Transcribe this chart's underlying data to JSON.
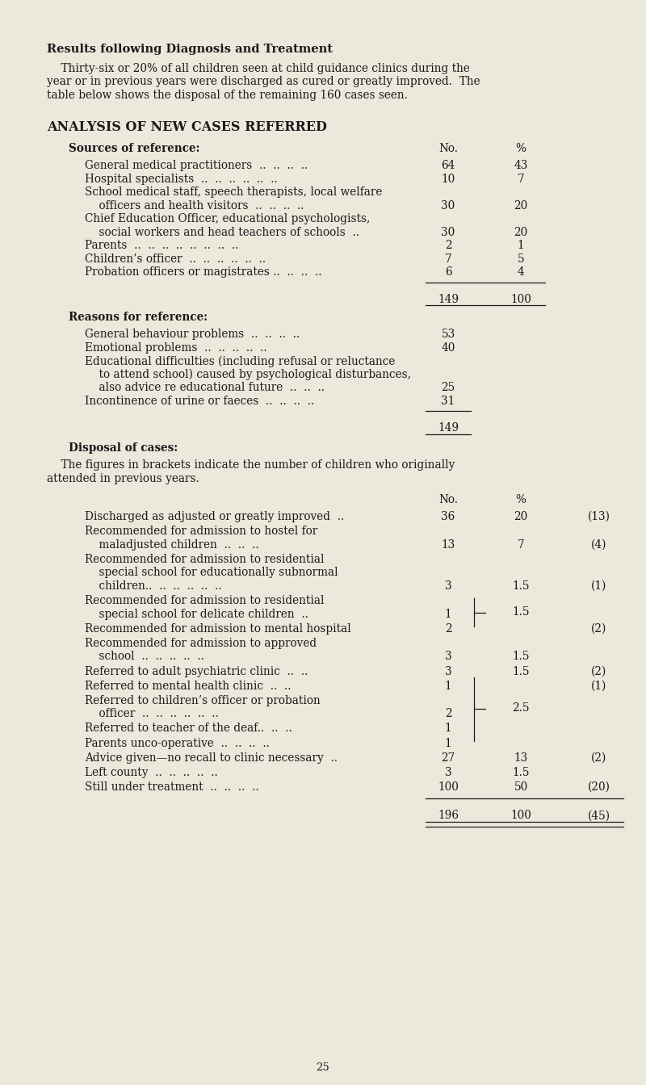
{
  "bg_color": "#ede8dc",
  "text_color": "#1a1a1a",
  "page_number": "25",
  "title_bold": "Results following Diagnosis and Treatment",
  "intro_line1": "    Thirty-six or 20% of all children seen at child guidance clinics during the",
  "intro_line2": "year or in previous years were discharged as cured or greatly improved.  The",
  "intro_line3": "table below shows the disposal of the remaining 160 cases seen.",
  "section_title": "ANALYSIS OF NEW CASES REFERRED",
  "sources_header": "Sources of reference:",
  "sources_col_no": "No.",
  "sources_col_pct": "%",
  "sources": [
    {
      "lines": [
        "General medical practitioners  ..  ..  ..  .."
      ],
      "no": "64",
      "pct": "43"
    },
    {
      "lines": [
        "Hospital specialists  ..  ..  ..  ..  ..  .."
      ],
      "no": "10",
      "pct": "7"
    },
    {
      "lines": [
        "School medical staff, speech therapists, local welfare",
        "    officers and health visitors  ..  ..  ..  .."
      ],
      "no": "30",
      "pct": "20"
    },
    {
      "lines": [
        "Chief Education Officer, educational psychologists,",
        "    social workers and head teachers of schools  .."
      ],
      "no": "30",
      "pct": "20"
    },
    {
      "lines": [
        "Parents  ..  ..  ..  ..  ..  ..  ..  .."
      ],
      "no": "2",
      "pct": "1"
    },
    {
      "lines": [
        "Children’s officer  ..  ..  ..  ..  ..  .."
      ],
      "no": "7",
      "pct": "5"
    },
    {
      "lines": [
        "Probation officers or magistrates ..  ..  ..  .."
      ],
      "no": "6",
      "pct": "4"
    }
  ],
  "sources_total_no": "149",
  "sources_total_pct": "100",
  "reasons_header": "Reasons for reference:",
  "reasons": [
    {
      "lines": [
        "General behaviour problems  ..  ..  ..  .."
      ],
      "no": "53"
    },
    {
      "lines": [
        "Emotional problems  ..  ..  ..  ..  .."
      ],
      "no": "40"
    },
    {
      "lines": [
        "Educational difficulties (including refusal or reluctance",
        "    to attend school) caused by psychological disturbances,",
        "    also advice re educational future  ..  ..  .."
      ],
      "no": "25"
    },
    {
      "lines": [
        "Incontinence of urine or faeces  ..  ..  ..  .."
      ],
      "no": "31"
    }
  ],
  "reasons_total_no": "149",
  "disposal_header": "Disposal of cases:",
  "disposal_note_line1": "    The figures in brackets indicate the number of children who originally",
  "disposal_note_line2": "attended in previous years.",
  "disposal_col_no": "No.",
  "disposal_col_pct": "%",
  "disposal": [
    {
      "lines": [
        "Discharged as adjusted or greatly improved  .."
      ],
      "no": "36",
      "pct": "20",
      "bracket": "(13)",
      "group": null
    },
    {
      "lines": [
        "Recommended for admission to hostel for",
        "    maladjusted children  ..  ..  .."
      ],
      "no": "13",
      "pct": "7",
      "bracket": "(4)",
      "group": null
    },
    {
      "lines": [
        "Recommended for admission to residential",
        "    special school for educationally subnormal",
        "    children..  ..  ..  ..  ..  .."
      ],
      "no": "3",
      "pct": "1.5",
      "bracket": "(1)",
      "group": null
    },
    {
      "lines": [
        "Recommended for admission to residential",
        "    special school for delicate children  .."
      ],
      "no": "1",
      "pct": "",
      "bracket": "",
      "group": "brace1_top"
    },
    {
      "lines": [
        "Recommended for admission to mental hospital"
      ],
      "no": "2",
      "pct": "",
      "bracket": "(2)",
      "group": "brace1_bot"
    },
    {
      "lines": [
        "Recommended for admission to approved",
        "    school  ..  ..  ..  ..  .."
      ],
      "no": "3",
      "pct": "1.5",
      "bracket": "",
      "group": null
    },
    {
      "lines": [
        "Referred to adult psychiatric clinic  ..  .."
      ],
      "no": "3",
      "pct": "1.5",
      "bracket": "(2)",
      "group": null
    },
    {
      "lines": [
        "Referred to mental health clinic  ..  .."
      ],
      "no": "1",
      "pct": "",
      "bracket": "(1)",
      "group": "brace2_top"
    },
    {
      "lines": [
        "Referred to children’s officer or probation",
        "    officer  ..  ..  ..  ..  ..  .."
      ],
      "no": "2",
      "pct": "",
      "bracket": "",
      "group": "brace2_mid"
    },
    {
      "lines": [
        "Referred to teacher of the deaf..  ..  .."
      ],
      "no": "1",
      "pct": "",
      "bracket": "",
      "group": "brace2_bot"
    },
    {
      "lines": [
        "Parents unco-operative  ..  ..  ..  .."
      ],
      "no": "1",
      "pct": "",
      "bracket": "",
      "group": "brace2_bot2"
    },
    {
      "lines": [
        "Advice given—no recall to clinic necessary  .."
      ],
      "no": "27",
      "pct": "13",
      "bracket": "(2)",
      "group": null
    },
    {
      "lines": [
        "Left county  ..  ..  ..  ..  .."
      ],
      "no": "3",
      "pct": "1.5",
      "bracket": "",
      "group": null
    },
    {
      "lines": [
        "Still under treatment  ..  ..  ..  .."
      ],
      "no": "100",
      "pct": "50",
      "bracket": "(20)",
      "group": null
    }
  ],
  "disposal_total_no": "196",
  "disposal_total_pct": "100",
  "disposal_total_bracket": "(45)",
  "brace1_pct": "1.5",
  "brace2_pct": "2.5"
}
